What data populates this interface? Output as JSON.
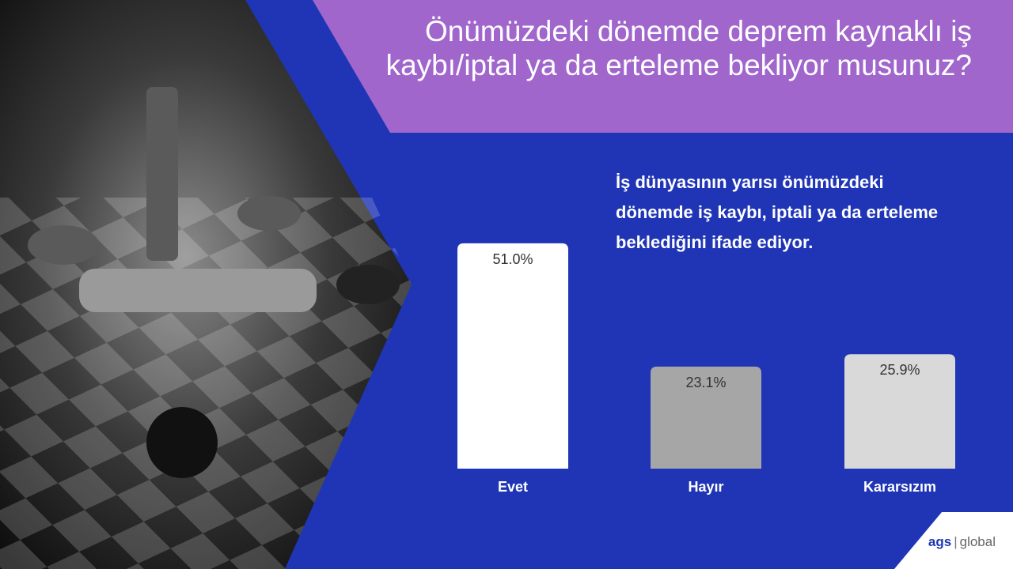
{
  "chart_data": {
    "type": "bar",
    "title": "Önümüzdeki dönemde deprem kaynaklı iş kaybı/iptal ya da erteleme bekliyor musunuz?",
    "subtitle": "İş dünyasının yarısı önümüzdeki dönemde iş kaybı, iptali ya da erteleme beklediğini ifade ediyor.",
    "categories": [
      "Evet",
      "Hayır",
      "Kararsızım"
    ],
    "values": [
      51.0,
      23.1,
      25.9
    ],
    "value_labels": [
      "51.0%",
      "23.1%",
      "25.9%"
    ],
    "colors": [
      "#ffffff",
      "#a6a6a6",
      "#d9d9d9"
    ]
  },
  "logo": {
    "brand": "ags",
    "sub": "global"
  }
}
